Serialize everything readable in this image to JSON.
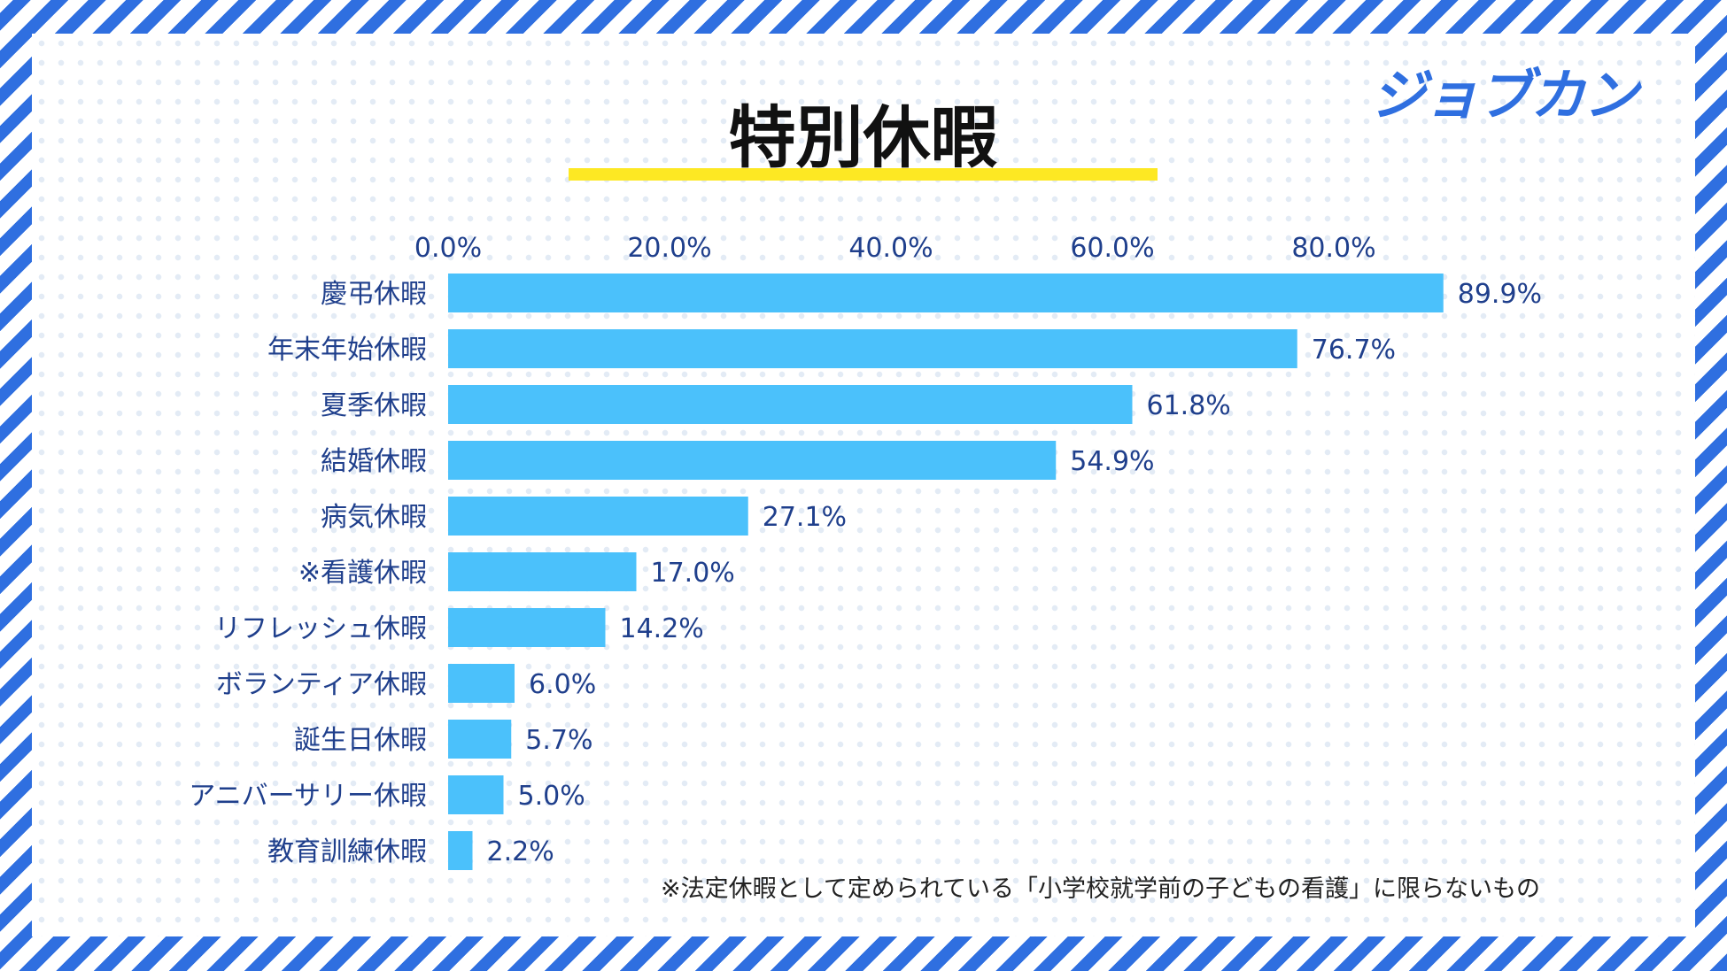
{
  "logo": "ジョブカン",
  "chart_data": {
    "type": "bar",
    "orientation": "horizontal",
    "title": "特別休暇",
    "xlabel": "",
    "ylabel": "",
    "xlim": [
      0,
      90
    ],
    "ticks": [
      0,
      20,
      40,
      60,
      80
    ],
    "tick_labels": [
      "0.0%",
      "20.0%",
      "40.0%",
      "60.0%",
      "80.0%"
    ],
    "categories": [
      "慶弔休暇",
      "年末年始休暇",
      "夏季休暇",
      "結婚休暇",
      "病気休暇",
      "※看護休暇",
      "リフレッシュ休暇",
      "ボランティア休暇",
      "誕生日休暇",
      "アニバーサリー休暇",
      "教育訓練休暇"
    ],
    "values": [
      89.9,
      76.7,
      61.8,
      54.9,
      27.1,
      17.0,
      14.2,
      6.0,
      5.7,
      5.0,
      2.2
    ],
    "value_labels": [
      "89.9%",
      "76.7%",
      "61.8%",
      "54.9%",
      "27.1%",
      "17.0%",
      "14.2%",
      "6.0%",
      "5.7%",
      "5.0%",
      "2.2%"
    ],
    "bar_color": "#4bc1fb",
    "grid": false,
    "legend": "none"
  },
  "footnote": "※法定休暇として定められている「小学校就学前の子どもの看護」に限らないもの",
  "colors": {
    "stripe": "#2f6fe0",
    "title_underline": "#fde823",
    "label_text": "#1f3f8c"
  }
}
